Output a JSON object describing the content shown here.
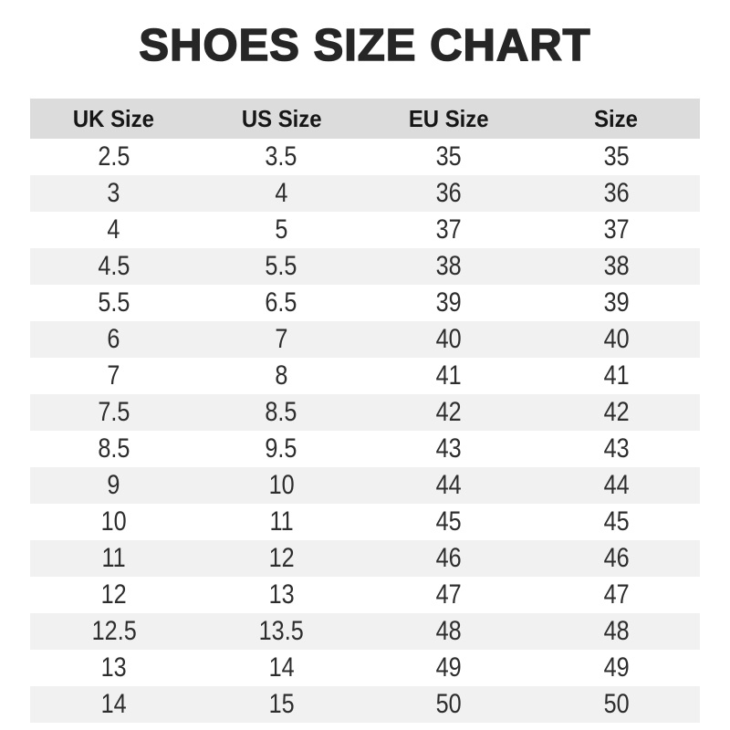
{
  "title": "SHOES SIZE CHART",
  "colors": {
    "header_bg": "#dcdcdc",
    "stripe_bg": "#f1f1f1",
    "title_color": "#262626"
  },
  "chart_data": {
    "type": "table",
    "title": "SHOES SIZE CHART",
    "columns": [
      "UK Size",
      "US Size",
      "EU Size",
      "Size"
    ],
    "rows": [
      [
        "2.5",
        "3.5",
        "35",
        "35"
      ],
      [
        "3",
        "4",
        "36",
        "36"
      ],
      [
        "4",
        "5",
        "37",
        "37"
      ],
      [
        "4.5",
        "5.5",
        "38",
        "38"
      ],
      [
        "5.5",
        "6.5",
        "39",
        "39"
      ],
      [
        "6",
        "7",
        "40",
        "40"
      ],
      [
        "7",
        "8",
        "41",
        "41"
      ],
      [
        "7.5",
        "8.5",
        "42",
        "42"
      ],
      [
        "8.5",
        "9.5",
        "43",
        "43"
      ],
      [
        "9",
        "10",
        "44",
        "44"
      ],
      [
        "10",
        "11",
        "45",
        "45"
      ],
      [
        "11",
        "12",
        "46",
        "46"
      ],
      [
        "12",
        "13",
        "47",
        "47"
      ],
      [
        "12.5",
        "13.5",
        "48",
        "48"
      ],
      [
        "13",
        "14",
        "49",
        "49"
      ],
      [
        "14",
        "15",
        "50",
        "50"
      ]
    ],
    "layout": {
      "striped": true,
      "stripe_pattern": "even rows white, odd rows light gray",
      "column_alignment": "center"
    }
  }
}
